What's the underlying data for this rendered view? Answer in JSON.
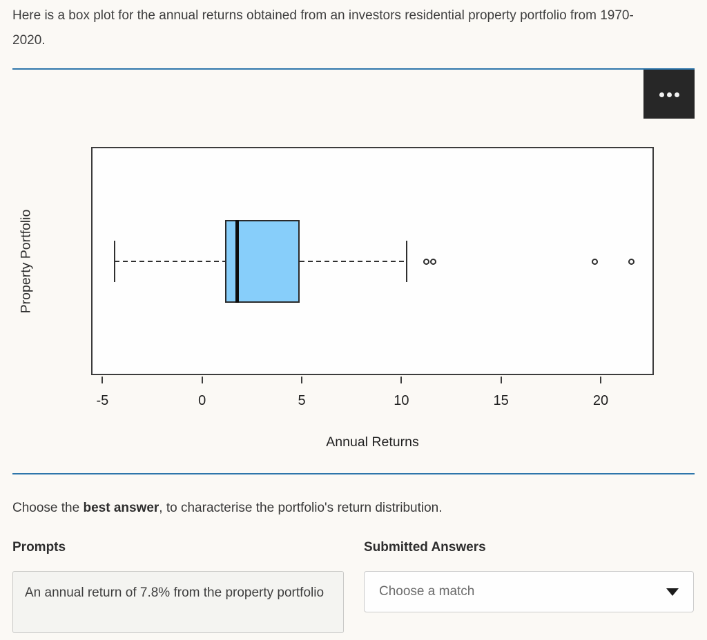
{
  "intro": {
    "text": "Here is a box plot for the annual returns obtained from an investors residential property portfolio from 1970-2020."
  },
  "chart_panel": {
    "menu_icon": "ellipsis-icon",
    "accent_color": "#2e76ab",
    "menu_bg": "#272727"
  },
  "chart_data": {
    "type": "boxplot",
    "orientation": "horizontal",
    "xlabel": "Annual Returns",
    "ylabel": "Property Portfolio",
    "x_ticks": [
      -5,
      0,
      5,
      10,
      15,
      20
    ],
    "xlim": [
      -5.5,
      22.6
    ],
    "grid": false,
    "box": {
      "whisker_low": -4.4,
      "q1": 1.15,
      "median": 1.75,
      "q3": 4.9,
      "whisker_high": 10.25
    },
    "outliers": [
      11.25,
      11.6,
      19.7,
      21.55
    ],
    "box_fill": "#87CEFA",
    "line_color": "#2f2f2f"
  },
  "question": {
    "prefix": "Choose the ",
    "bold": "best answer",
    "suffix": ", to characterise the portfolio's return distribution."
  },
  "matching": {
    "prompts_header": "Prompts",
    "answers_header": "Submitted Answers",
    "prompt_text": "An annual return of 7.8% from the property portfolio",
    "dropdown_value": "Choose a match",
    "dropdown_icon": "caret-down-icon"
  }
}
